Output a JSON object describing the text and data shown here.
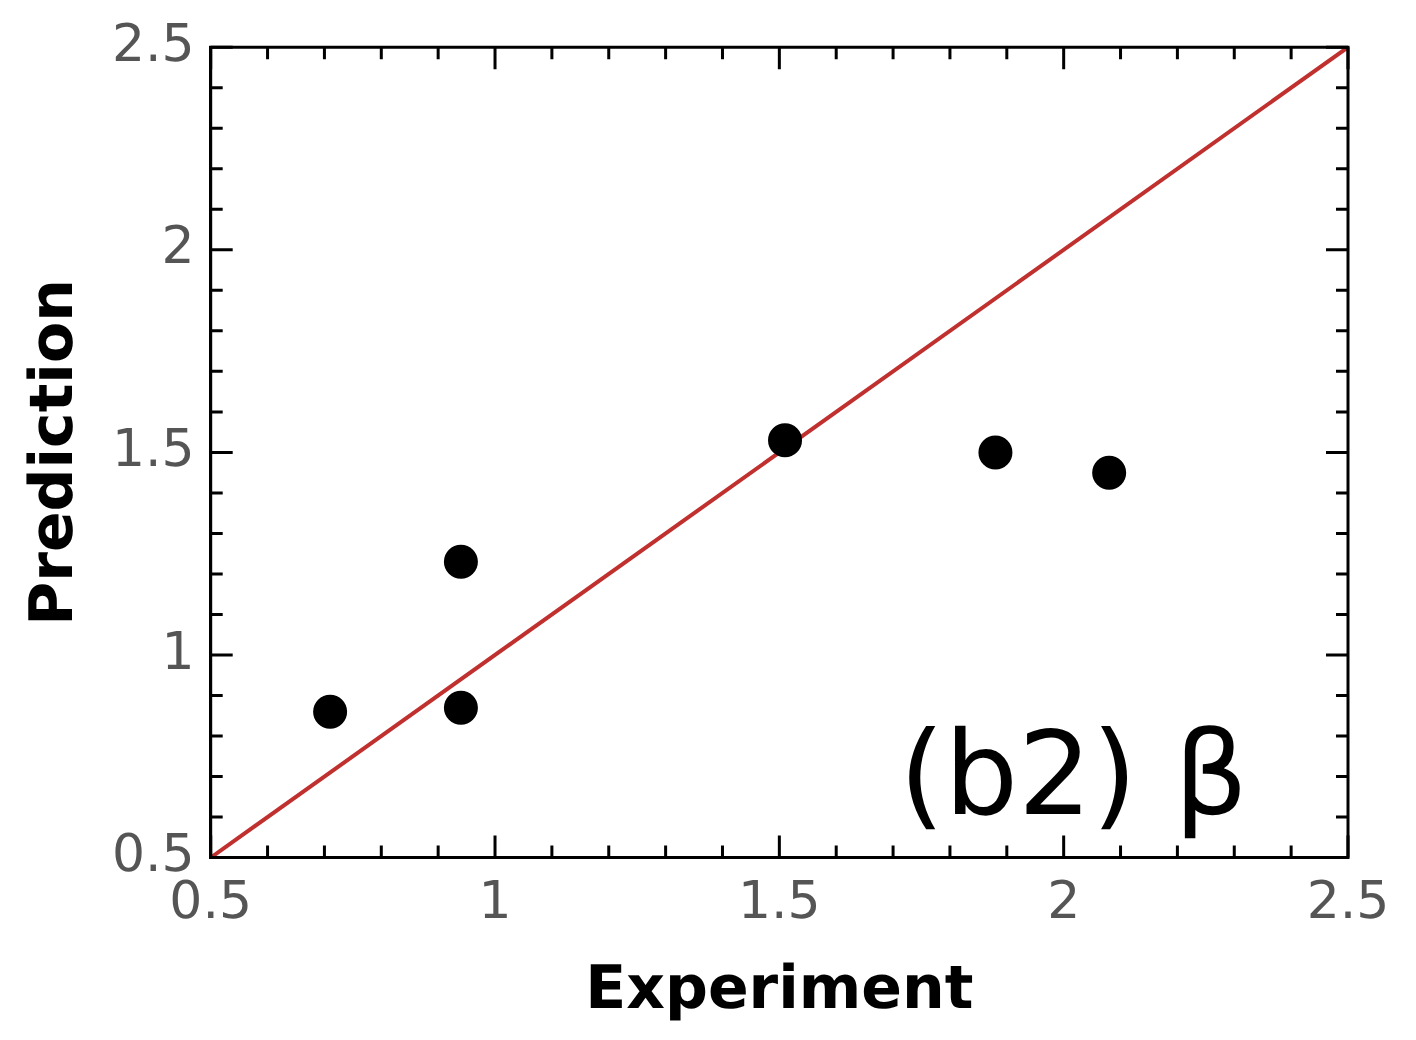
{
  "chart_data": {
    "type": "scatter",
    "xlabel": "Experiment",
    "ylabel": "Prediction",
    "annotations": [
      "(b2) β"
    ],
    "series": [
      {
        "color": "#000000",
        "marker": "circle",
        "x": [
          0.71,
          0.94,
          0.94,
          1.51,
          1.88,
          2.08
        ],
        "values": [
          0.86,
          1.23,
          0.87,
          1.53,
          1.5,
          1.45
        ]
      },
      {
        "type": "line",
        "color": "#c0302e",
        "marker": "none",
        "x": [
          0.5,
          2.5
        ],
        "values": [
          0.5,
          2.5
        ]
      }
    ],
    "xlim": [
      0.5,
      2.5
    ],
    "ylim": [
      0.5,
      2.5
    ],
    "xticks": [
      0.5,
      {
        "value": 0.6,
        "label": null
      },
      {
        "value": 0.7,
        "label": null
      },
      {
        "value": 0.8,
        "label": null
      },
      {
        "value": 0.9,
        "label": null
      },
      1,
      {
        "value": 1.1,
        "label": null
      },
      {
        "value": 1.2,
        "label": null
      },
      {
        "value": 1.3,
        "label": null
      },
      {
        "value": 1.4,
        "label": null
      },
      1.5,
      {
        "value": 1.6,
        "label": null
      },
      {
        "value": 1.7,
        "label": null
      },
      {
        "value": 1.8,
        "label": null
      },
      {
        "value": 1.9,
        "label": null
      },
      2,
      {
        "value": 2.1,
        "label": null
      },
      {
        "value": 2.2,
        "label": null
      },
      {
        "value": 2.3,
        "label": null
      },
      {
        "value": 2.4,
        "label": null
      },
      2.5
    ],
    "yticks": [
      0.5,
      {
        "value": 0.6,
        "label": null
      },
      {
        "value": 0.7,
        "label": null
      },
      {
        "value": 0.8,
        "label": null
      },
      {
        "value": 0.9,
        "label": null
      },
      1,
      {
        "value": 1.1,
        "label": null
      },
      {
        "value": 1.2,
        "label": null
      },
      {
        "value": 1.3,
        "label": null
      },
      {
        "value": 1.4,
        "label": null
      },
      1.5,
      {
        "value": 1.6,
        "label": null
      },
      {
        "value": 1.7,
        "label": null
      },
      {
        "value": 1.8,
        "label": null
      },
      {
        "value": 1.9,
        "label": null
      },
      2,
      {
        "value": 2.1,
        "label": null
      },
      {
        "value": 2.2,
        "label": null
      },
      {
        "value": 2.3,
        "label": null
      },
      {
        "value": 2.4,
        "label": null
      },
      2.5
    ],
    "grid": false,
    "legend": false
  }
}
